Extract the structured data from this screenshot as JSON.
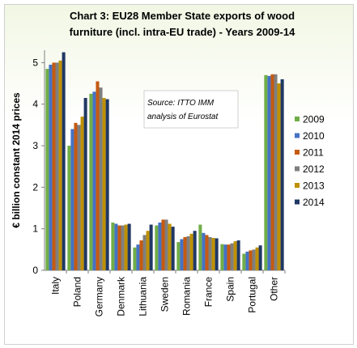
{
  "chart_data": {
    "type": "bar",
    "title_lines": [
      "Chart 3: EU28 Member State exports of wood",
      "furniture (incl. intra-EU trade) - Years 2009-14"
    ],
    "ylabel": "€ billion constant 2014 prices",
    "xlabel": "",
    "ylim": [
      0,
      5.3
    ],
    "yticks": [
      "0",
      "1",
      "2",
      "3",
      "4",
      "5"
    ],
    "grid": false,
    "legend_position": "right",
    "annotation_lines": [
      "Source: ITTO IMM",
      "analysis of Eurostat"
    ],
    "categories": [
      "Italy",
      "Poland",
      "Germany",
      "Denmark",
      "Lithuania",
      "Sweden",
      "Romania",
      "France",
      "Spain",
      "Portugal",
      "Other"
    ],
    "series": [
      {
        "name": "2009",
        "color": "#70ad47",
        "values": [
          4.85,
          3.0,
          4.25,
          1.15,
          0.55,
          1.08,
          0.68,
          1.1,
          0.63,
          0.4,
          4.7
        ]
      },
      {
        "name": "2010",
        "color": "#4472c4",
        "values": [
          4.95,
          3.4,
          4.3,
          1.12,
          0.62,
          1.15,
          0.75,
          0.9,
          0.62,
          0.45,
          4.68
        ]
      },
      {
        "name": "2011",
        "color": "#c55a11",
        "values": [
          5.0,
          3.55,
          4.55,
          1.08,
          0.72,
          1.22,
          0.8,
          0.85,
          0.62,
          0.48,
          4.72
        ]
      },
      {
        "name": "2012",
        "color": "#7f7f7f",
        "values": [
          5.0,
          3.5,
          4.4,
          1.08,
          0.85,
          1.22,
          0.82,
          0.8,
          0.65,
          0.5,
          4.72
        ]
      },
      {
        "name": "2013",
        "color": "#bf9000",
        "values": [
          5.05,
          3.7,
          4.15,
          1.1,
          0.95,
          1.12,
          0.88,
          0.78,
          0.7,
          0.55,
          4.5
        ]
      },
      {
        "name": "2014",
        "color": "#203864",
        "values": [
          5.25,
          4.15,
          4.12,
          1.12,
          1.1,
          1.05,
          0.95,
          0.77,
          0.72,
          0.6,
          4.6
        ]
      }
    ]
  }
}
